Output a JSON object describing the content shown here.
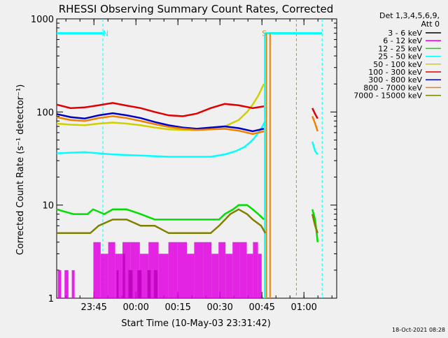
{
  "chart_data": {
    "type": "line",
    "title": "RHESSI Observing Summary Count Rates, Corrected",
    "xlabel": "Start Time (10-May-03 23:31:42)",
    "ylabel": "Corrected Count Rate (s⁻¹ detector⁻¹)",
    "yscale": "log",
    "ylim": [
      1,
      1000
    ],
    "xlim_minutes_from_start": [
      0,
      100
    ],
    "x_ticks": [
      {
        "label": "23:45",
        "minute": 13.3
      },
      {
        "label": "00:00",
        "minute": 28.3
      },
      {
        "label": "00:15",
        "minute": 43.3
      },
      {
        "label": "00:30",
        "minute": 58.3
      },
      {
        "label": "00:45",
        "minute": 73.3
      },
      {
        "label": "01:00",
        "minute": 88.3
      }
    ],
    "y_ticks": [
      {
        "label": "1",
        "value": 1
      },
      {
        "label": "10",
        "value": 10
      },
      {
        "label": "100",
        "value": 100
      },
      {
        "label": "1000",
        "value": 1000
      }
    ],
    "legend_header": [
      "Det 1,3,4,5,6,9,",
      "Att 0"
    ],
    "legend_position": "right",
    "series": [
      {
        "name": "3 - 6 keV",
        "color": "#000000",
        "kind": "counts",
        "x": [
          18.2,
          21.4,
          22.1,
          23.6,
          24.4,
          25.6,
          27.1,
          28.8,
          30.3,
          32.4,
          33.6,
          34.7,
          36.0,
          37.4
        ],
        "y": [
          1,
          2,
          1,
          3,
          1,
          2,
          1,
          2,
          1,
          2,
          1,
          2,
          1,
          2
        ]
      },
      {
        "name": "6 - 12 keV",
        "color": "#e000e0",
        "kind": "counts",
        "x": [
          0.4,
          1.6,
          2.8,
          4.2,
          5.4,
          6.4,
          13.1,
          15.7,
          18.4,
          20.9,
          23.5,
          26.3,
          29.7,
          32.8,
          36.4,
          39.9,
          43.2,
          46.5,
          49.1,
          52.4,
          55.3,
          57.8,
          60.3,
          62.8,
          65.4,
          67.9,
          70.1,
          71.9,
          73.2
        ],
        "y": [
          2,
          1,
          2,
          1,
          2,
          1,
          4,
          3,
          4,
          3,
          4,
          4,
          3,
          4,
          3,
          4,
          4,
          3,
          4,
          4,
          3,
          4,
          3,
          4,
          4,
          3,
          4,
          3,
          4
        ]
      },
      {
        "name": "12 - 25 keV",
        "color": "#00e000",
        "kind": "line",
        "x": [
          0,
          6,
          11,
          13,
          17,
          20,
          25,
          30,
          35,
          40,
          45,
          50,
          55,
          58,
          60,
          63,
          65,
          68,
          70,
          72,
          74,
          91.3,
          92.3,
          93.2
        ],
        "y": [
          9,
          8,
          8,
          9,
          8,
          9,
          9,
          8,
          7,
          7,
          7,
          7,
          7,
          7,
          8,
          9,
          10,
          10,
          9,
          8,
          7,
          9,
          7,
          4
        ]
      },
      {
        "name": "25 - 50 keV",
        "color": "#00ffff",
        "kind": "line",
        "x": [
          0,
          10,
          20,
          30,
          40,
          50,
          55,
          60,
          64,
          67,
          69,
          70.5,
          72,
          73.5,
          74.5,
          91.3,
          92.3,
          93.2
        ],
        "y": [
          36,
          37,
          35,
          34,
          33,
          33,
          33,
          35,
          38,
          42,
          47,
          52,
          60,
          70,
          80,
          48,
          38,
          35
        ]
      },
      {
        "name": "50 - 100 keV",
        "color": "#d0d000",
        "kind": "line",
        "x": [
          0,
          5,
          10,
          15,
          20,
          25,
          30,
          35,
          40,
          45,
          50,
          55,
          60,
          65,
          68,
          70,
          72,
          74
        ],
        "y": [
          75,
          73,
          72,
          75,
          77,
          75,
          72,
          68,
          65,
          64,
          64,
          66,
          70,
          82,
          100,
          120,
          150,
          200
        ]
      },
      {
        "name": "100 - 300 keV",
        "color": "#e00000",
        "kind": "line",
        "x": [
          0,
          5,
          10,
          15,
          20,
          25,
          30,
          35,
          40,
          45,
          50,
          55,
          60,
          65,
          70,
          74,
          91.3,
          92.3,
          93.2
        ],
        "y": [
          120,
          110,
          112,
          118,
          125,
          117,
          110,
          100,
          92,
          90,
          96,
          110,
          122,
          118,
          110,
          115,
          110,
          95,
          85
        ]
      },
      {
        "name": "300 - 800 keV",
        "color": "#0000c0",
        "kind": "line",
        "x": [
          0,
          5,
          10,
          15,
          20,
          25,
          30,
          35,
          40,
          45,
          50,
          55,
          60,
          65,
          70,
          74
        ],
        "y": [
          95,
          88,
          85,
          92,
          97,
          92,
          86,
          78,
          72,
          68,
          66,
          68,
          70,
          67,
          62,
          66
        ]
      },
      {
        "name": "800 - 7000 keV",
        "color": "#f08000",
        "kind": "line",
        "x": [
          0,
          5,
          10,
          15,
          20,
          25,
          30,
          35,
          40,
          45,
          50,
          55,
          60,
          65,
          70,
          74,
          91.3,
          92.3,
          93.2
        ],
        "y": [
          88,
          82,
          80,
          86,
          90,
          86,
          80,
          74,
          69,
          66,
          64,
          65,
          66,
          63,
          58,
          62,
          90,
          75,
          62
        ]
      },
      {
        "name": "7000 - 15000 keV",
        "color": "#808000",
        "kind": "line",
        "x": [
          0,
          5,
          10,
          12,
          15,
          20,
          25,
          30,
          35,
          40,
          45,
          50,
          55,
          58,
          62,
          65,
          68,
          70,
          73,
          74.5,
          91.3,
          92.3,
          93.2
        ],
        "y": [
          5,
          5,
          5,
          5,
          6,
          7,
          7,
          6,
          6,
          5,
          5,
          5,
          5,
          6,
          8,
          9,
          8,
          7,
          6,
          5,
          8,
          6,
          5
        ]
      }
    ],
    "markers": [
      {
        "label": "N",
        "color": "#00ffff",
        "level": 700,
        "x_start": 0,
        "x_end": 16.5,
        "boundary_x": [
          16.5
        ]
      },
      {
        "label": "S",
        "color": "#f08000",
        "level": 700,
        "x_start": 76.2,
        "x_end": 85.6,
        "boundary_x": [
          85.6
        ]
      },
      {
        "label": "",
        "color": "#00ffff",
        "level": 700,
        "x_start": 74.3,
        "x_end": 94.8,
        "boundary_x": [
          94.8
        ]
      }
    ],
    "state_bars": [
      {
        "color": "#00ffff",
        "x": 74.3
      },
      {
        "color": "#f08000",
        "x": 74.9
      },
      {
        "color": "#f08000",
        "x": 76.2
      }
    ],
    "footer_timestamp": "18-Oct-2021 08:28"
  }
}
